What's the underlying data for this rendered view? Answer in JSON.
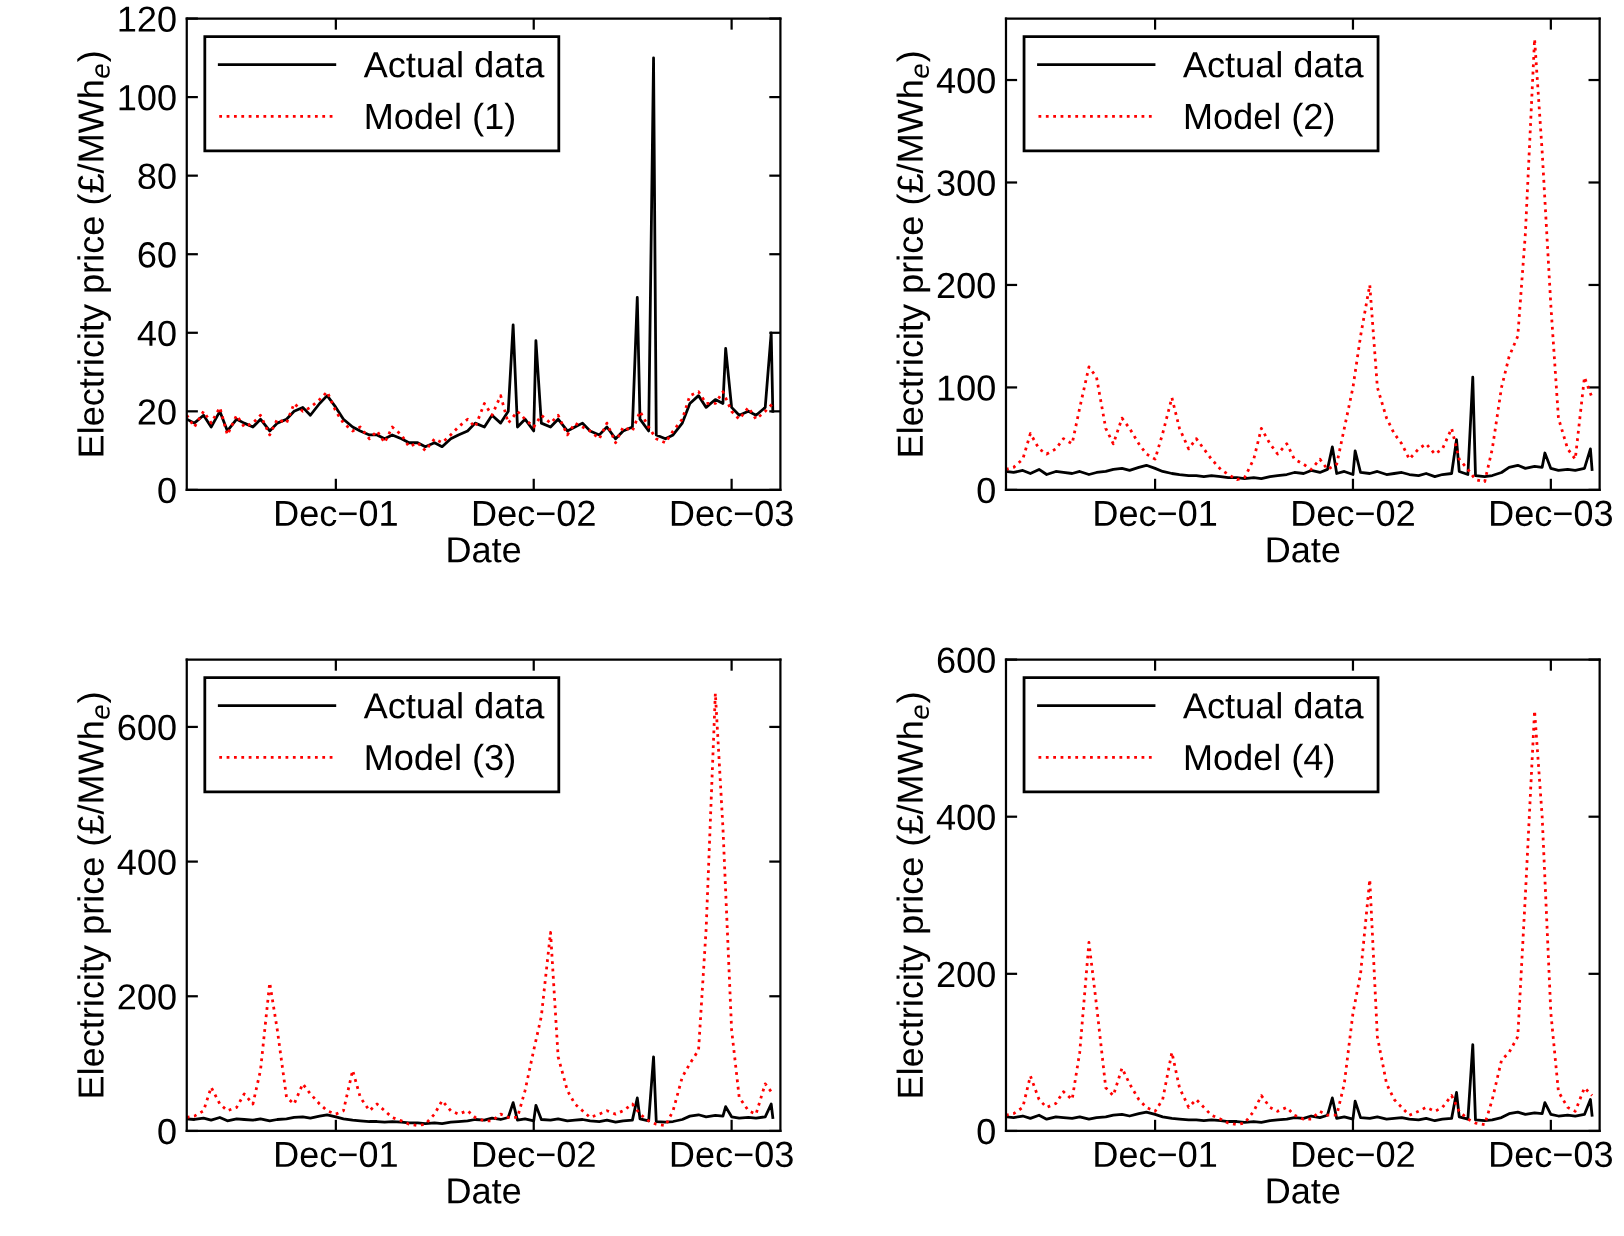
{
  "chart_data": [
    {
      "type": "line",
      "xlabel": "Date",
      "ylabel": "Electricity price (£/MWh$_{e}$)",
      "legend": "top left",
      "x": [
        "2001-03-01",
        "2001-03-15",
        "2001-04-01",
        "2001-04-15",
        "2001-05-01",
        "2001-05-15",
        "2001-06-01",
        "2001-06-15",
        "2001-07-01",
        "2001-07-15",
        "2001-08-01",
        "2001-08-15",
        "2001-09-01",
        "2001-09-15",
        "2001-10-01",
        "2001-10-15",
        "2001-11-01",
        "2001-11-15",
        "2001-12-01",
        "2001-12-15",
        "2002-01-01",
        "2002-01-15",
        "2002-02-01",
        "2002-02-15",
        "2002-03-01",
        "2002-03-15",
        "2002-04-01",
        "2002-04-15",
        "2002-05-01",
        "2002-05-15",
        "2002-06-01",
        "2002-06-15",
        "2002-07-01",
        "2002-07-15",
        "2002-08-01",
        "2002-08-15",
        "2002-09-01",
        "2002-09-15",
        "2002-10-01",
        "2002-10-15",
        "2002-11-01",
        "2002-11-15",
        "2002-12-01",
        "2002-12-15",
        "2003-01-01",
        "2003-01-15",
        "2003-02-01",
        "2003-02-15",
        "2003-03-01",
        "2003-03-15",
        "2003-04-01",
        "2003-04-15",
        "2003-05-01",
        "2003-05-15",
        "2003-06-01",
        "2003-06-15",
        "2003-07-01",
        "2003-07-15",
        "2003-08-01",
        "2003-08-15",
        "2003-09-01",
        "2003-09-15",
        "2003-10-01",
        "2003-10-15",
        "2003-11-01",
        "2003-11-15",
        "2003-12-01",
        "2003-12-15",
        "2004-01-01",
        "2004-01-15",
        "2004-02-01",
        "2004-02-15"
      ],
      "xlim": [
        "2001-03-01",
        "2004-02-29"
      ],
      "xticks": [
        {
          "value": "2001-12-01",
          "label": "Dec−01"
        },
        {
          "value": "2002-12-01",
          "label": "Dec−02"
        },
        {
          "value": "2003-12-01",
          "label": "Dec−03"
        }
      ],
      "ylim": [
        0,
        120
      ],
      "yticks": [
        0,
        20,
        40,
        60,
        80,
        100,
        120
      ],
      "series": [
        {
          "name": "Actual data",
          "color": "#000000",
          "line_style": "solid",
          "x": [
            "2001-03-01",
            "2001-03-15",
            "2001-04-01",
            "2001-04-15",
            "2001-05-01",
            "2001-05-15",
            "2001-06-01",
            "2001-06-15",
            "2001-07-01",
            "2001-07-15",
            "2001-08-01",
            "2001-08-15",
            "2001-09-01",
            "2001-09-15",
            "2001-10-01",
            "2001-10-15",
            "2001-11-01",
            "2001-11-15",
            "2001-12-01",
            "2001-12-15",
            "2002-01-01",
            "2002-01-15",
            "2002-02-01",
            "2002-02-15",
            "2002-03-01",
            "2002-03-15",
            "2002-04-01",
            "2002-04-15",
            "2002-05-01",
            "2002-05-15",
            "2002-06-01",
            "2002-06-15",
            "2002-07-01",
            "2002-07-15",
            "2002-08-01",
            "2002-08-15",
            "2002-09-01",
            "2002-09-15",
            "2002-10-01",
            "2002-10-15",
            "2002-10-24",
            "2002-11-01",
            "2002-11-15",
            "2002-12-01",
            "2002-12-05",
            "2002-12-15",
            "2003-01-01",
            "2003-01-15",
            "2003-02-01",
            "2003-02-15",
            "2003-03-01",
            "2003-03-15",
            "2003-04-01",
            "2003-04-15",
            "2003-05-01",
            "2003-05-15",
            "2003-06-01",
            "2003-06-10",
            "2003-06-15",
            "2003-07-01",
            "2003-07-10",
            "2003-07-15",
            "2003-08-01",
            "2003-08-15",
            "2003-09-01",
            "2003-09-15",
            "2003-10-01",
            "2003-10-15",
            "2003-11-01",
            "2003-11-15",
            "2003-11-20",
            "2003-12-01",
            "2003-12-15",
            "2004-01-01",
            "2004-01-15",
            "2004-02-01",
            "2004-02-12",
            "2004-02-15"
          ],
          "values": [
            18,
            17,
            19,
            16,
            20,
            15,
            18,
            17,
            16,
            18,
            15,
            17,
            18,
            20,
            21,
            19,
            22,
            24,
            21,
            18,
            16,
            15,
            14,
            14,
            13,
            14,
            13,
            12,
            12,
            11,
            12,
            11,
            13,
            14,
            15,
            17,
            16,
            19,
            17,
            20,
            42,
            16,
            18,
            15,
            38,
            17,
            16,
            18,
            15,
            16,
            17,
            15,
            14,
            16,
            13,
            15,
            16,
            49,
            18,
            15,
            110,
            14,
            13,
            14,
            17,
            22,
            24,
            21,
            23,
            22,
            36,
            21,
            19,
            20,
            19,
            21,
            40,
            20
          ]
        },
        {
          "name": "Model (1)",
          "color": "#ff0000",
          "line_style": "dotted",
          "values": [
            19,
            16,
            20,
            17,
            21,
            14,
            19,
            16,
            17,
            19,
            14,
            18,
            17,
            22,
            20,
            21,
            23,
            25,
            20,
            17,
            15,
            16,
            13,
            15,
            12,
            16,
            14,
            11,
            12,
            10,
            13,
            12,
            14,
            16,
            18,
            16,
            22,
            19,
            24,
            17,
            20,
            18,
            16,
            19,
            17,
            19,
            14,
            17,
            16,
            15,
            13,
            17,
            12,
            16,
            15,
            20,
            16,
            13,
            12,
            15,
            18,
            24,
            25,
            22,
            22,
            25,
            20,
            18,
            21,
            18,
            20,
            22
          ]
        }
      ]
    },
    {
      "type": "line",
      "xlabel": "Date",
      "ylabel": "Electricity price (£/MWh$_{e}$)",
      "legend": "top left",
      "x": [
        "2001-03-01",
        "2001-03-15",
        "2001-04-01",
        "2001-04-15",
        "2001-05-01",
        "2001-05-15",
        "2001-06-01",
        "2001-06-15",
        "2001-07-01",
        "2001-07-15",
        "2001-08-01",
        "2001-08-15",
        "2001-09-01",
        "2001-09-15",
        "2001-10-01",
        "2001-10-15",
        "2001-11-01",
        "2001-11-15",
        "2001-12-01",
        "2001-12-15",
        "2002-01-01",
        "2002-01-15",
        "2002-02-01",
        "2002-02-15",
        "2002-03-01",
        "2002-03-15",
        "2002-04-01",
        "2002-04-15",
        "2002-05-01",
        "2002-05-15",
        "2002-06-01",
        "2002-06-15",
        "2002-07-01",
        "2002-07-15",
        "2002-08-01",
        "2002-08-15",
        "2002-09-01",
        "2002-09-15",
        "2002-10-01",
        "2002-10-15",
        "2002-11-01",
        "2002-11-15",
        "2002-12-01",
        "2002-12-15",
        "2003-01-01",
        "2003-01-15",
        "2003-02-01",
        "2003-02-15",
        "2003-03-01",
        "2003-03-15",
        "2003-04-01",
        "2003-04-15",
        "2003-05-01",
        "2003-05-15",
        "2003-06-01",
        "2003-06-15",
        "2003-07-01",
        "2003-07-15",
        "2003-08-01",
        "2003-08-15",
        "2003-09-01",
        "2003-09-15",
        "2003-10-01",
        "2003-10-15",
        "2003-11-01",
        "2003-11-15",
        "2003-12-01",
        "2003-12-15",
        "2004-01-01",
        "2004-01-15",
        "2004-02-01",
        "2004-02-15"
      ],
      "xlim": [
        "2001-03-01",
        "2004-02-29"
      ],
      "xticks": [
        {
          "value": "2001-12-01",
          "label": "Dec−01"
        },
        {
          "value": "2002-12-01",
          "label": "Dec−02"
        },
        {
          "value": "2003-12-01",
          "label": "Dec−03"
        }
      ],
      "ylim": [
        0,
        460
      ],
      "yticks": [
        0,
        100,
        200,
        300,
        400
      ],
      "series": [
        {
          "name": "Actual data",
          "color": "#000000",
          "line_style": "solid",
          "x": [
            "2001-03-01",
            "2001-03-15",
            "2001-04-01",
            "2001-04-15",
            "2001-05-01",
            "2001-05-15",
            "2001-06-01",
            "2001-06-15",
            "2001-07-01",
            "2001-07-15",
            "2001-08-01",
            "2001-08-15",
            "2001-09-01",
            "2001-09-15",
            "2001-10-01",
            "2001-10-15",
            "2001-11-01",
            "2001-11-15",
            "2001-12-01",
            "2001-12-15",
            "2002-01-01",
            "2002-01-15",
            "2002-02-01",
            "2002-02-15",
            "2002-03-01",
            "2002-03-15",
            "2002-04-01",
            "2002-04-15",
            "2002-05-01",
            "2002-05-15",
            "2002-06-01",
            "2002-06-15",
            "2002-07-01",
            "2002-07-15",
            "2002-08-01",
            "2002-08-15",
            "2002-09-01",
            "2002-09-15",
            "2002-10-01",
            "2002-10-15",
            "2002-10-24",
            "2002-11-01",
            "2002-11-15",
            "2002-12-01",
            "2002-12-05",
            "2002-12-15",
            "2003-01-01",
            "2003-01-15",
            "2003-02-01",
            "2003-02-15",
            "2003-03-01",
            "2003-03-15",
            "2003-04-01",
            "2003-04-15",
            "2003-05-01",
            "2003-05-15",
            "2003-06-01",
            "2003-06-10",
            "2003-06-15",
            "2003-07-01",
            "2003-07-10",
            "2003-07-15",
            "2003-08-01",
            "2003-08-15",
            "2003-09-01",
            "2003-09-15",
            "2003-10-01",
            "2003-10-15",
            "2003-11-01",
            "2003-11-15",
            "2003-11-20",
            "2003-12-01",
            "2003-12-15",
            "2004-01-01",
            "2004-01-15",
            "2004-02-01",
            "2004-02-12",
            "2004-02-15"
          ],
          "values": [
            18,
            17,
            19,
            16,
            20,
            15,
            18,
            17,
            16,
            18,
            15,
            17,
            18,
            20,
            21,
            19,
            22,
            24,
            21,
            18,
            16,
            15,
            14,
            14,
            13,
            14,
            13,
            12,
            12,
            11,
            12,
            11,
            13,
            14,
            15,
            17,
            16,
            19,
            17,
            20,
            42,
            16,
            18,
            15,
            38,
            17,
            16,
            18,
            15,
            16,
            17,
            15,
            14,
            16,
            13,
            15,
            16,
            49,
            18,
            15,
            110,
            14,
            13,
            14,
            17,
            22,
            24,
            21,
            23,
            22,
            36,
            21,
            19,
            20,
            19,
            21,
            40,
            20
          ]
        },
        {
          "name": "Model (2)",
          "color": "#ff0000",
          "line_style": "dotted",
          "values": [
            20,
            22,
            30,
            55,
            40,
            35,
            40,
            50,
            45,
            80,
            120,
            110,
            60,
            45,
            70,
            60,
            45,
            35,
            30,
            55,
            90,
            60,
            40,
            50,
            40,
            30,
            20,
            15,
            10,
            12,
            30,
            60,
            45,
            35,
            45,
            30,
            25,
            20,
            30,
            20,
            25,
            60,
            100,
            150,
            200,
            100,
            70,
            55,
            45,
            30,
            40,
            45,
            35,
            40,
            60,
            30,
            20,
            10,
            8,
            40,
            100,
            130,
            150,
            250,
            440,
            330,
            180,
            70,
            40,
            30,
            110,
            90
          ]
        }
      ]
    },
    {
      "type": "line",
      "xlabel": "Date",
      "ylabel": "Electricity price (£/MWh$_{e}$)",
      "legend": "top left",
      "x": [
        "2001-03-01",
        "2001-03-15",
        "2001-04-01",
        "2001-04-15",
        "2001-05-01",
        "2001-05-15",
        "2001-06-01",
        "2001-06-15",
        "2001-07-01",
        "2001-07-15",
        "2001-08-01",
        "2001-08-15",
        "2001-09-01",
        "2001-09-15",
        "2001-10-01",
        "2001-10-15",
        "2001-11-01",
        "2001-11-15",
        "2001-12-01",
        "2001-12-15",
        "2002-01-01",
        "2002-01-15",
        "2002-02-01",
        "2002-02-15",
        "2002-03-01",
        "2002-03-15",
        "2002-04-01",
        "2002-04-15",
        "2002-05-01",
        "2002-05-15",
        "2002-06-01",
        "2002-06-15",
        "2002-07-01",
        "2002-07-15",
        "2002-08-01",
        "2002-08-15",
        "2002-09-01",
        "2002-09-15",
        "2002-10-01",
        "2002-10-15",
        "2002-11-01",
        "2002-11-15",
        "2002-12-01",
        "2002-12-15",
        "2003-01-01",
        "2003-01-15",
        "2003-02-01",
        "2003-02-15",
        "2003-03-01",
        "2003-03-15",
        "2003-04-01",
        "2003-04-15",
        "2003-05-01",
        "2003-05-15",
        "2003-06-01",
        "2003-06-15",
        "2003-07-01",
        "2003-07-15",
        "2003-08-01",
        "2003-08-15",
        "2003-09-01",
        "2003-09-15",
        "2003-10-01",
        "2003-10-15",
        "2003-11-01",
        "2003-11-15",
        "2003-12-01",
        "2003-12-15",
        "2004-01-01",
        "2004-01-15",
        "2004-02-01",
        "2004-02-15"
      ],
      "xlim": [
        "2001-03-01",
        "2004-02-29"
      ],
      "xticks": [
        {
          "value": "2001-12-01",
          "label": "Dec−01"
        },
        {
          "value": "2002-12-01",
          "label": "Dec−02"
        },
        {
          "value": "2003-12-01",
          "label": "Dec−03"
        }
      ],
      "ylim": [
        0,
        700
      ],
      "yticks": [
        0,
        200,
        400,
        600
      ],
      "series": [
        {
          "name": "Actual data",
          "color": "#000000",
          "line_style": "solid",
          "x": [
            "2001-03-01",
            "2001-03-15",
            "2001-04-01",
            "2001-04-15",
            "2001-05-01",
            "2001-05-15",
            "2001-06-01",
            "2001-06-15",
            "2001-07-01",
            "2001-07-15",
            "2001-08-01",
            "2001-08-15",
            "2001-09-01",
            "2001-09-15",
            "2001-10-01",
            "2001-10-15",
            "2001-11-01",
            "2001-11-15",
            "2001-12-01",
            "2001-12-15",
            "2002-01-01",
            "2002-01-15",
            "2002-02-01",
            "2002-02-15",
            "2002-03-01",
            "2002-03-15",
            "2002-04-01",
            "2002-04-15",
            "2002-05-01",
            "2002-05-15",
            "2002-06-01",
            "2002-06-15",
            "2002-07-01",
            "2002-07-15",
            "2002-08-01",
            "2002-08-15",
            "2002-09-01",
            "2002-09-15",
            "2002-10-01",
            "2002-10-15",
            "2002-10-24",
            "2002-11-01",
            "2002-11-15",
            "2002-12-01",
            "2002-12-05",
            "2002-12-15",
            "2003-01-01",
            "2003-01-15",
            "2003-02-01",
            "2003-02-15",
            "2003-03-01",
            "2003-03-15",
            "2003-04-01",
            "2003-04-15",
            "2003-05-01",
            "2003-05-15",
            "2003-06-01",
            "2003-06-10",
            "2003-06-15",
            "2003-07-01",
            "2003-07-10",
            "2003-07-15",
            "2003-08-01",
            "2003-08-15",
            "2003-09-01",
            "2003-09-15",
            "2003-10-01",
            "2003-10-15",
            "2003-11-01",
            "2003-11-15",
            "2003-11-20",
            "2003-12-01",
            "2003-12-15",
            "2004-01-01",
            "2004-01-15",
            "2004-02-01",
            "2004-02-12",
            "2004-02-15"
          ],
          "values": [
            18,
            17,
            19,
            16,
            20,
            15,
            18,
            17,
            16,
            18,
            15,
            17,
            18,
            20,
            21,
            19,
            22,
            24,
            21,
            18,
            16,
            15,
            14,
            14,
            13,
            14,
            13,
            12,
            12,
            11,
            12,
            11,
            13,
            14,
            15,
            17,
            16,
            19,
            17,
            20,
            42,
            16,
            18,
            15,
            38,
            17,
            16,
            18,
            15,
            16,
            17,
            15,
            14,
            16,
            13,
            15,
            16,
            49,
            18,
            15,
            110,
            14,
            13,
            14,
            17,
            22,
            24,
            21,
            23,
            22,
            36,
            21,
            19,
            20,
            19,
            21,
            40,
            20
          ]
        },
        {
          "name": "Model (3)",
          "color": "#ff0000",
          "line_style": "dotted",
          "values": [
            20,
            22,
            30,
            65,
            40,
            30,
            35,
            55,
            40,
            90,
            220,
            150,
            50,
            40,
            70,
            55,
            40,
            30,
            25,
            30,
            90,
            50,
            30,
            40,
            30,
            20,
            15,
            10,
            8,
            10,
            25,
            45,
            30,
            25,
            30,
            20,
            15,
            15,
            25,
            20,
            20,
            60,
            120,
            170,
            295,
            110,
            60,
            40,
            30,
            20,
            25,
            30,
            25,
            30,
            40,
            25,
            15,
            10,
            8,
            30,
            80,
            100,
            120,
            300,
            650,
            450,
            150,
            50,
            30,
            25,
            70,
            55
          ]
        }
      ]
    },
    {
      "type": "line",
      "xlabel": "Date",
      "ylabel": "Electricity price (£/MWh$_{e}$)",
      "legend": "top left",
      "x": [
        "2001-03-01",
        "2001-03-15",
        "2001-04-01",
        "2001-04-15",
        "2001-05-01",
        "2001-05-15",
        "2001-06-01",
        "2001-06-15",
        "2001-07-01",
        "2001-07-15",
        "2001-08-01",
        "2001-08-15",
        "2001-09-01",
        "2001-09-15",
        "2001-10-01",
        "2001-10-15",
        "2001-11-01",
        "2001-11-15",
        "2001-12-01",
        "2001-12-15",
        "2002-01-01",
        "2002-01-15",
        "2002-02-01",
        "2002-02-15",
        "2002-03-01",
        "2002-03-15",
        "2002-04-01",
        "2002-04-15",
        "2002-05-01",
        "2002-05-15",
        "2002-06-01",
        "2002-06-15",
        "2002-07-01",
        "2002-07-15",
        "2002-08-01",
        "2002-08-15",
        "2002-09-01",
        "2002-09-15",
        "2002-10-01",
        "2002-10-15",
        "2002-11-01",
        "2002-11-15",
        "2002-12-01",
        "2002-12-15",
        "2003-01-01",
        "2003-01-15",
        "2003-02-01",
        "2003-02-15",
        "2003-03-01",
        "2003-03-15",
        "2003-04-01",
        "2003-04-15",
        "2003-05-01",
        "2003-05-15",
        "2003-06-01",
        "2003-06-15",
        "2003-07-01",
        "2003-07-15",
        "2003-08-01",
        "2003-08-15",
        "2003-09-01",
        "2003-09-15",
        "2003-10-01",
        "2003-10-15",
        "2003-11-01",
        "2003-11-15",
        "2003-12-01",
        "2003-12-15",
        "2004-01-01",
        "2004-01-15",
        "2004-02-01",
        "2004-02-15"
      ],
      "xlim": [
        "2001-03-01",
        "2004-02-29"
      ],
      "xticks": [
        {
          "value": "2001-12-01",
          "label": "Dec−01"
        },
        {
          "value": "2002-12-01",
          "label": "Dec−02"
        },
        {
          "value": "2003-12-01",
          "label": "Dec−03"
        }
      ],
      "ylim": [
        0,
        600
      ],
      "yticks": [
        0,
        200,
        400,
        600
      ],
      "series": [
        {
          "name": "Actual data",
          "color": "#000000",
          "line_style": "solid",
          "x": [
            "2001-03-01",
            "2001-03-15",
            "2001-04-01",
            "2001-04-15",
            "2001-05-01",
            "2001-05-15",
            "2001-06-01",
            "2001-06-15",
            "2001-07-01",
            "2001-07-15",
            "2001-08-01",
            "2001-08-15",
            "2001-09-01",
            "2001-09-15",
            "2001-10-01",
            "2001-10-15",
            "2001-11-01",
            "2001-11-15",
            "2001-12-01",
            "2001-12-15",
            "2002-01-01",
            "2002-01-15",
            "2002-02-01",
            "2002-02-15",
            "2002-03-01",
            "2002-03-15",
            "2002-04-01",
            "2002-04-15",
            "2002-05-01",
            "2002-05-15",
            "2002-06-01",
            "2002-06-15",
            "2002-07-01",
            "2002-07-15",
            "2002-08-01",
            "2002-08-15",
            "2002-09-01",
            "2002-09-15",
            "2002-10-01",
            "2002-10-15",
            "2002-10-24",
            "2002-11-01",
            "2002-11-15",
            "2002-12-01",
            "2002-12-05",
            "2002-12-15",
            "2003-01-01",
            "2003-01-15",
            "2003-02-01",
            "2003-02-15",
            "2003-03-01",
            "2003-03-15",
            "2003-04-01",
            "2003-04-15",
            "2003-05-01",
            "2003-05-15",
            "2003-06-01",
            "2003-06-10",
            "2003-06-15",
            "2003-07-01",
            "2003-07-10",
            "2003-07-15",
            "2003-08-01",
            "2003-08-15",
            "2003-09-01",
            "2003-09-15",
            "2003-10-01",
            "2003-10-15",
            "2003-11-01",
            "2003-11-15",
            "2003-11-20",
            "2003-12-01",
            "2003-12-15",
            "2004-01-01",
            "2004-01-15",
            "2004-02-01",
            "2004-02-12",
            "2004-02-15"
          ],
          "values": [
            18,
            17,
            19,
            16,
            20,
            15,
            18,
            17,
            16,
            18,
            15,
            17,
            18,
            20,
            21,
            19,
            22,
            24,
            21,
            18,
            16,
            15,
            14,
            14,
            13,
            14,
            13,
            12,
            12,
            11,
            12,
            11,
            13,
            14,
            15,
            17,
            16,
            19,
            17,
            20,
            42,
            16,
            18,
            15,
            38,
            17,
            16,
            18,
            15,
            16,
            17,
            15,
            14,
            16,
            13,
            15,
            16,
            49,
            18,
            15,
            110,
            14,
            13,
            14,
            17,
            22,
            24,
            21,
            23,
            22,
            36,
            21,
            19,
            20,
            19,
            21,
            40,
            20
          ]
        },
        {
          "name": "Model (4)",
          "color": "#ff0000",
          "line_style": "dotted",
          "values": [
            20,
            22,
            30,
            70,
            40,
            30,
            35,
            50,
            40,
            100,
            240,
            160,
            55,
            45,
            80,
            60,
            40,
            30,
            25,
            40,
            100,
            55,
            30,
            40,
            30,
            20,
            15,
            10,
            8,
            10,
            25,
            45,
            30,
            25,
            30,
            20,
            15,
            15,
            25,
            20,
            20,
            60,
            150,
            200,
            320,
            120,
            60,
            40,
            30,
            20,
            25,
            30,
            25,
            30,
            45,
            25,
            15,
            10,
            8,
            40,
            90,
            100,
            120,
            300,
            535,
            400,
            150,
            50,
            30,
            25,
            55,
            45
          ]
        }
      ]
    }
  ]
}
